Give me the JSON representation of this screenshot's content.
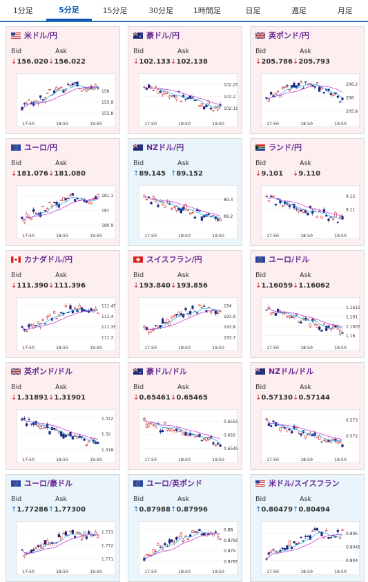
{
  "tabs": [
    "1分足",
    "5分足",
    "15分足",
    "30分足",
    "1時間足",
    "日足",
    "週足",
    "月足"
  ],
  "active_tab": 1,
  "labels": {
    "bid": "Bid",
    "ask": "Ask"
  },
  "x_ticks": [
    "17:50",
    "18:50",
    "19:50"
  ],
  "cards": [
    {
      "name": "米ドル/円",
      "flag": "us",
      "theme": "pink",
      "dir": "down",
      "bid": "156.020",
      "ask": "156.022",
      "y_ticks": [
        "156",
        "155.9",
        "155.8"
      ],
      "ymin": 155.76,
      "ymax": 156.12,
      "seed": 3,
      "trend": "up"
    },
    {
      "name": "豪ドル/円",
      "flag": "au",
      "theme": "pink",
      "dir": "down",
      "bid": "102.133",
      "ask": "102.138",
      "y_ticks": [
        "102.25",
        "102.2",
        "102.15"
      ],
      "ymin": 102.11,
      "ymax": 102.28,
      "seed": 7,
      "trend": "down"
    },
    {
      "name": "英ポンド/円",
      "flag": "uk",
      "theme": "pink",
      "dir": "down",
      "bid": "205.786",
      "ask": "205.793",
      "y_ticks": [
        "206.2",
        "206",
        "205.8"
      ],
      "ymin": 205.7,
      "ymax": 206.3,
      "seed": 11,
      "trend": "hump"
    },
    {
      "name": "ユーロ/円",
      "flag": "eu",
      "theme": "pink",
      "dir": "down",
      "bid": "181.076",
      "ask": "181.080",
      "y_ticks": [
        "181.1",
        "181",
        "180.9"
      ],
      "ymin": 180.87,
      "ymax": 181.14,
      "seed": 13,
      "trend": "up"
    },
    {
      "name": "NZドル/円",
      "flag": "nz",
      "theme": "blue",
      "dir": "up",
      "bid": "89.145",
      "ask": "89.152",
      "y_ticks": [
        "89.3",
        "89.2"
      ],
      "ymin": 89.12,
      "ymax": 89.36,
      "seed": 17,
      "trend": "down"
    },
    {
      "name": "ランド/円",
      "flag": "za",
      "theme": "pink",
      "dir": "down",
      "bid": "9.101",
      "ask": "9.110",
      "y_ticks": [
        "9.12",
        "9.11"
      ],
      "ymin": 9.095,
      "ymax": 9.125,
      "seed": 19,
      "trend": "down"
    },
    {
      "name": "カナダドル/円",
      "flag": "ca",
      "theme": "pink",
      "dir": "down",
      "bid": "111.390",
      "ask": "111.396",
      "y_ticks": [
        "111.45",
        "111.4",
        "111.35",
        "111.3"
      ],
      "ymin": 111.28,
      "ymax": 111.47,
      "seed": 23,
      "trend": "up"
    },
    {
      "name": "スイスフラン/円",
      "flag": "ch",
      "theme": "pink",
      "dir": "down",
      "bid": "193.840",
      "ask": "193.856",
      "y_ticks": [
        "194",
        "193.9",
        "193.8",
        "193.7"
      ],
      "ymin": 193.66,
      "ymax": 194.04,
      "seed": 29,
      "trend": "up"
    },
    {
      "name": "ユーロ/ドル",
      "flag": "eu",
      "theme": "pink",
      "dir": "down",
      "bid": "1.16059",
      "ask": "1.16062",
      "y_ticks": [
        "1.1615",
        "1.161",
        "1.1605",
        "1.16"
      ],
      "ymin": 1.1597,
      "ymax": 1.1618,
      "seed": 31,
      "trend": "down"
    },
    {
      "name": "英ポンド/ドル",
      "flag": "uk",
      "theme": "pink",
      "dir": "down",
      "bid": "1.31891",
      "ask": "1.31901",
      "y_ticks": [
        "1.322",
        "1.32",
        "1.318"
      ],
      "ymin": 1.3175,
      "ymax": 1.3226,
      "seed": 37,
      "trend": "down"
    },
    {
      "name": "豪ドル/ドル",
      "flag": "au",
      "theme": "pink",
      "dir": "down",
      "bid": "0.65461",
      "ask": "0.65465",
      "y_ticks": [
        "0.6555",
        "0.655",
        "0.6545"
      ],
      "ymin": 0.6543,
      "ymax": 0.6558,
      "seed": 41,
      "trend": "down"
    },
    {
      "name": "NZドル/ドル",
      "flag": "nz",
      "theme": "pink",
      "dir": "down",
      "bid": "0.57130",
      "ask": "0.57144",
      "y_ticks": [
        "0.573",
        "0.572"
      ],
      "ymin": 0.5709,
      "ymax": 0.5734,
      "seed": 43,
      "trend": "down"
    },
    {
      "name": "ユーロ/豪ドル",
      "flag": "eu",
      "theme": "blue",
      "dir": "up",
      "bid": "1.77286",
      "ask": "1.77300",
      "y_ticks": [
        "1.773",
        "1.772",
        "1.771"
      ],
      "ymin": 1.7705,
      "ymax": 1.7735,
      "seed": 47,
      "trend": "up"
    },
    {
      "name": "ユーロ/英ポンド",
      "flag": "eu",
      "theme": "blue",
      "dir": "up",
      "bid": "0.87988",
      "ask": "0.87996",
      "y_ticks": [
        "0.88",
        "0.8795",
        "0.879",
        "0.8785"
      ],
      "ymin": 0.8783,
      "ymax": 0.8802,
      "seed": 53,
      "trend": "up"
    },
    {
      "name": "米ドル/スイスフラン",
      "flag": "us",
      "theme": "blue",
      "dir": "up",
      "bid": "0.80479",
      "ask": "0.80494",
      "y_ticks": [
        "0.805",
        "0.8045",
        "0.804"
      ],
      "ymin": 0.8038,
      "ymax": 0.8053,
      "seed": 59,
      "trend": "up"
    }
  ]
}
